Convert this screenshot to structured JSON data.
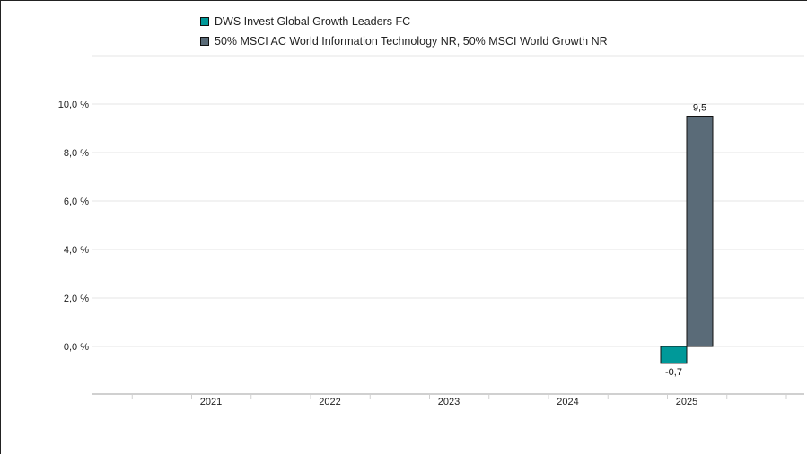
{
  "chart_data": {
    "type": "bar",
    "title": "",
    "xlabel": "",
    "ylabel": "",
    "categories": [
      "2021",
      "2022",
      "2023",
      "2024",
      "2025"
    ],
    "series": [
      {
        "name": "DWS Invest Global Growth Leaders FC",
        "color": "#009999",
        "values": [
          null,
          null,
          null,
          null,
          -0.7
        ],
        "labels": [
          "",
          "",
          "",
          "",
          "-0,7"
        ]
      },
      {
        "name": "50% MSCI AC World Information Technology NR, 50% MSCI World Growth NR",
        "color": "#5a6b78",
        "values": [
          null,
          null,
          null,
          null,
          9.5
        ],
        "labels": [
          "",
          "",
          "",
          "",
          "9,5"
        ]
      }
    ],
    "yticks": [
      0,
      2,
      4,
      6,
      8,
      10
    ],
    "ytick_labels": [
      "0,0 %",
      "2,0 %",
      "4,0 %",
      "6,0 %",
      "8,0 %",
      "10,0 %"
    ],
    "ylim": [
      -2,
      12
    ],
    "grid": true,
    "legend_position": "top"
  }
}
